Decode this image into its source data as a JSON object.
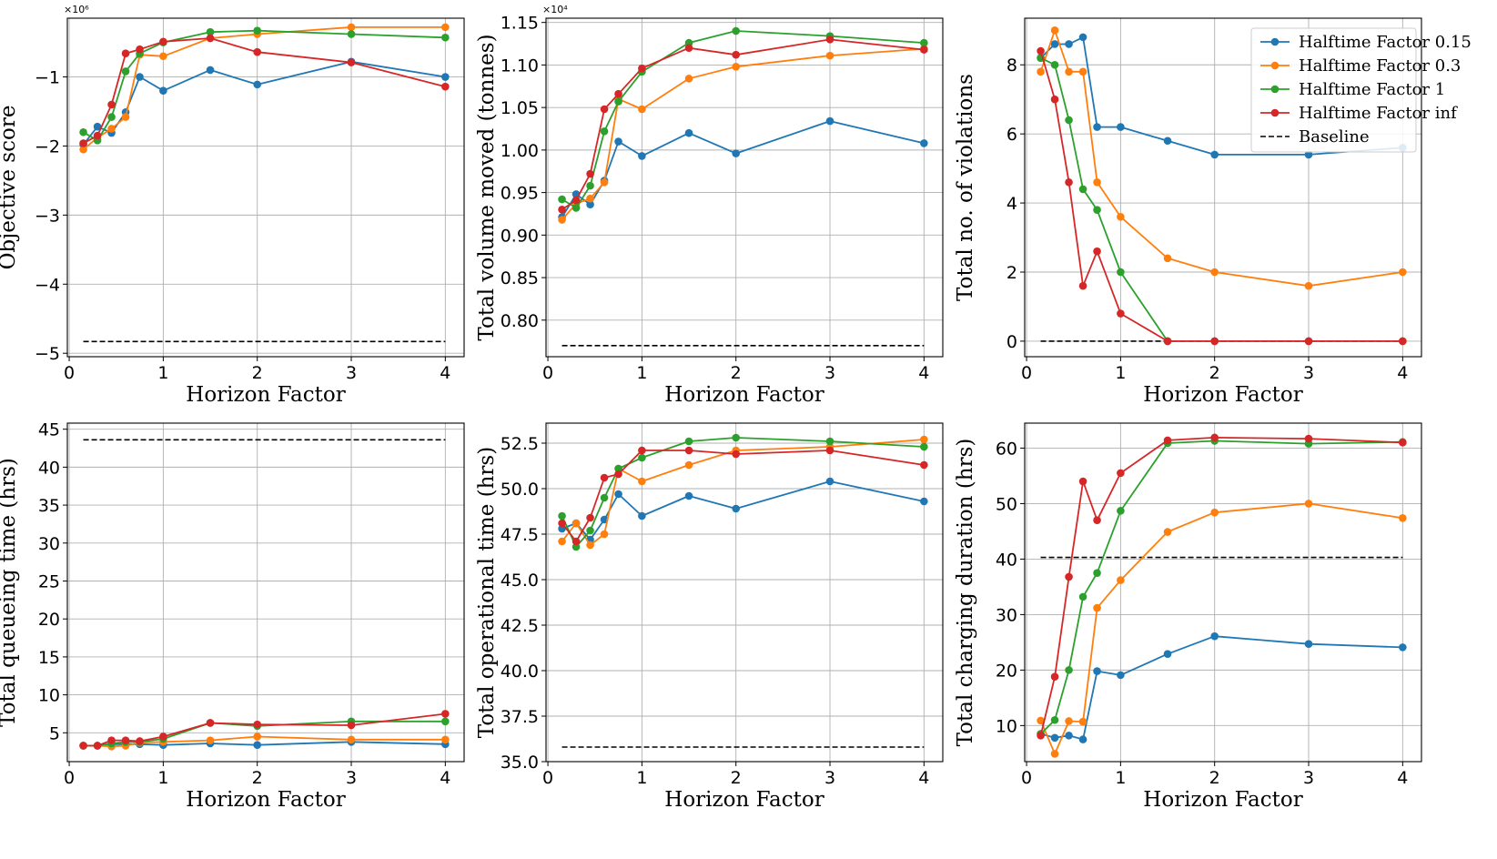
{
  "colors": {
    "s015": "#1f77b4",
    "s03": "#ff7f0e",
    "s1": "#2ca02c",
    "sinf": "#d62728",
    "baseline": "#000000",
    "grid": "#b0b0b0"
  },
  "legend": {
    "items": [
      {
        "label": "Halftime Factor 0.15",
        "color": "#1f77b4",
        "style": "marker"
      },
      {
        "label": "Halftime Factor 0.3",
        "color": "#ff7f0e",
        "style": "marker"
      },
      {
        "label": "Halftime Factor 1",
        "color": "#2ca02c",
        "style": "marker"
      },
      {
        "label": "Halftime Factor inf",
        "color": "#d62728",
        "style": "marker"
      },
      {
        "label": "Baseline",
        "color": "#000000",
        "style": "dashed"
      }
    ]
  },
  "chart_data": [
    {
      "type": "line",
      "xlabel": "Horizon Factor",
      "ylabel": "Objective score",
      "exponent": "×10⁶",
      "xlim": [
        -0.02,
        4.2
      ],
      "ylim": [
        -5.05,
        -0.15
      ],
      "xticks": [
        0,
        1,
        2,
        3,
        4
      ],
      "yticks": [
        -5,
        -4,
        -3,
        -2,
        -1
      ],
      "ytick_labels": [
        "−5",
        "−4",
        "−3",
        "−2",
        "−1"
      ],
      "x": [
        0.15,
        0.3,
        0.45,
        0.6,
        0.75,
        1,
        1.5,
        2,
        3,
        4
      ],
      "series": [
        {
          "name": "Halftime Factor 0.15",
          "values": [
            -1.98,
            -1.72,
            -1.81,
            -1.51,
            -1.0,
            -1.2,
            -0.9,
            -1.11,
            -0.78,
            -1.0
          ]
        },
        {
          "name": "Halftime Factor 0.3",
          "values": [
            -2.05,
            -1.88,
            -1.75,
            -1.58,
            -0.68,
            -0.7,
            -0.44,
            -0.38,
            -0.28,
            -0.28
          ]
        },
        {
          "name": "Halftime Factor 1",
          "values": [
            -1.8,
            -1.92,
            -1.58,
            -0.92,
            -0.66,
            -0.5,
            -0.35,
            -0.33,
            -0.38,
            -0.43
          ]
        },
        {
          "name": "Halftime Factor inf",
          "values": [
            -1.96,
            -1.85,
            -1.4,
            -0.66,
            -0.6,
            -0.49,
            -0.44,
            -0.64,
            -0.79,
            -1.14
          ]
        }
      ],
      "baseline": {
        "name": "Baseline",
        "value": -4.83,
        "x_range": [
          0.15,
          4
        ]
      }
    },
    {
      "type": "line",
      "xlabel": "Horizon Factor",
      "ylabel": "Total volume moved (tonnes)",
      "exponent": "×10⁴",
      "xlim": [
        -0.02,
        4.2
      ],
      "ylim": [
        0.757,
        1.155
      ],
      "xticks": [
        0,
        1,
        2,
        3,
        4
      ],
      "yticks": [
        0.8,
        0.85,
        0.9,
        0.95,
        1.0,
        1.05,
        1.1,
        1.15
      ],
      "ytick_labels": [
        "0.80",
        "0.85",
        "0.90",
        "0.95",
        "1.00",
        "1.05",
        "1.10",
        "1.15"
      ],
      "x": [
        0.15,
        0.3,
        0.45,
        0.6,
        0.75,
        1,
        1.5,
        2,
        3,
        4
      ],
      "series": [
        {
          "name": "Halftime Factor 0.15",
          "values": [
            0.921,
            0.948,
            0.936,
            0.964,
            1.01,
            0.993,
            1.02,
            0.996,
            1.034,
            1.008
          ]
        },
        {
          "name": "Halftime Factor 0.3",
          "values": [
            0.918,
            0.937,
            0.943,
            0.962,
            1.06,
            1.048,
            1.084,
            1.098,
            1.111,
            1.119
          ]
        },
        {
          "name": "Halftime Factor 1",
          "values": [
            0.942,
            0.932,
            0.958,
            1.022,
            1.057,
            1.092,
            1.126,
            1.14,
            1.134,
            1.126
          ]
        },
        {
          "name": "Halftime Factor inf",
          "values": [
            0.93,
            0.941,
            0.972,
            1.048,
            1.066,
            1.096,
            1.12,
            1.112,
            1.13,
            1.118
          ]
        }
      ],
      "baseline": {
        "name": "Baseline",
        "value": 0.77,
        "x_range": [
          0.15,
          4
        ]
      }
    },
    {
      "type": "line",
      "xlabel": "Horizon Factor",
      "ylabel": "Total no. of violations",
      "exponent": "",
      "xlim": [
        -0.02,
        4.2
      ],
      "ylim": [
        -0.45,
        9.35
      ],
      "xticks": [
        0,
        1,
        2,
        3,
        4
      ],
      "yticks": [
        0,
        2,
        4,
        6,
        8
      ],
      "ytick_labels": [
        "0",
        "2",
        "4",
        "6",
        "8"
      ],
      "x": [
        0.15,
        0.3,
        0.45,
        0.6,
        0.75,
        1,
        1.5,
        2,
        3,
        4
      ],
      "series": [
        {
          "name": "Halftime Factor 0.15",
          "values": [
            8.2,
            8.6,
            8.6,
            8.8,
            6.2,
            6.2,
            5.8,
            5.4,
            5.4,
            5.6
          ]
        },
        {
          "name": "Halftime Factor 0.3",
          "values": [
            7.8,
            9.0,
            7.8,
            7.8,
            4.6,
            3.6,
            2.4,
            2.0,
            1.6,
            2.0
          ]
        },
        {
          "name": "Halftime Factor 1",
          "values": [
            8.2,
            8.0,
            6.4,
            4.4,
            3.8,
            2.0,
            0.0,
            0.0,
            0.0,
            0.0
          ]
        },
        {
          "name": "Halftime Factor inf",
          "values": [
            8.4,
            7.0,
            4.6,
            1.6,
            2.6,
            0.8,
            0.0,
            0.0,
            0.0,
            0.0
          ]
        }
      ],
      "baseline": {
        "name": "Baseline",
        "value": 0.0,
        "x_range": [
          0.15,
          4
        ]
      },
      "legend": "top-right"
    },
    {
      "type": "line",
      "xlabel": "Horizon Factor",
      "ylabel": "Total queueing time (hrs)",
      "exponent": "",
      "xlim": [
        -0.02,
        4.2
      ],
      "ylim": [
        1.2,
        45.8
      ],
      "xticks": [
        0,
        1,
        2,
        3,
        4
      ],
      "yticks": [
        5,
        10,
        15,
        20,
        25,
        30,
        35,
        40,
        45
      ],
      "ytick_labels": [
        "5",
        "10",
        "15",
        "20",
        "25",
        "30",
        "35",
        "40",
        "45"
      ],
      "x": [
        0.15,
        0.3,
        0.45,
        0.6,
        0.75,
        1,
        1.5,
        2,
        3,
        4
      ],
      "series": [
        {
          "name": "Halftime Factor 0.15",
          "values": [
            3.3,
            3.3,
            3.5,
            3.5,
            3.5,
            3.4,
            3.6,
            3.4,
            3.8,
            3.5
          ]
        },
        {
          "name": "Halftime Factor 0.3",
          "values": [
            3.3,
            3.3,
            3.2,
            3.3,
            3.7,
            3.8,
            4.0,
            4.5,
            4.1,
            4.1
          ]
        },
        {
          "name": "Halftime Factor 1",
          "values": [
            3.3,
            3.3,
            3.6,
            3.8,
            3.8,
            4.2,
            6.3,
            5.9,
            6.5,
            6.5
          ]
        },
        {
          "name": "Halftime Factor inf",
          "values": [
            3.3,
            3.3,
            4.0,
            4.0,
            3.9,
            4.5,
            6.3,
            6.1,
            6.0,
            7.5
          ]
        }
      ],
      "baseline": {
        "name": "Baseline",
        "value": 43.6,
        "x_range": [
          0.15,
          4
        ]
      }
    },
    {
      "type": "line",
      "xlabel": "Horizon Factor",
      "ylabel": "Total operational time (hrs)",
      "exponent": "",
      "xlim": [
        -0.02,
        4.2
      ],
      "ylim": [
        35,
        53.6
      ],
      "xticks": [
        0,
        1,
        2,
        3,
        4
      ],
      "yticks": [
        35,
        37.5,
        40,
        42.5,
        45,
        47.5,
        50,
        52.5
      ],
      "ytick_labels": [
        "35.0",
        "37.5",
        "40.0",
        "42.5",
        "45.0",
        "47.5",
        "50.0",
        "52.5"
      ],
      "x": [
        0.15,
        0.3,
        0.45,
        0.6,
        0.75,
        1,
        1.5,
        2,
        3,
        4
      ],
      "series": [
        {
          "name": "Halftime Factor 0.15",
          "values": [
            47.8,
            48.1,
            47.2,
            48.3,
            49.7,
            48.5,
            49.6,
            48.9,
            50.4,
            49.3
          ]
        },
        {
          "name": "Halftime Factor 0.3",
          "values": [
            47.1,
            48.1,
            46.9,
            47.5,
            51.1,
            50.4,
            51.3,
            52.1,
            52.3,
            52.7
          ]
        },
        {
          "name": "Halftime Factor 1",
          "values": [
            48.5,
            46.8,
            47.7,
            49.5,
            51.1,
            51.7,
            52.6,
            52.8,
            52.6,
            52.3
          ]
        },
        {
          "name": "Halftime Factor inf",
          "values": [
            48.1,
            47.1,
            48.4,
            50.6,
            50.8,
            52.1,
            52.1,
            51.9,
            52.1,
            51.3
          ]
        }
      ],
      "baseline": {
        "name": "Baseline",
        "value": 35.8,
        "x_range": [
          0.15,
          4
        ]
      }
    },
    {
      "type": "line",
      "xlabel": "Horizon Factor",
      "ylabel": "Total charging duration (hrs)",
      "exponent": "",
      "xlim": [
        -0.02,
        4.2
      ],
      "ylim": [
        3.5,
        64.5
      ],
      "xticks": [
        0,
        1,
        2,
        3,
        4
      ],
      "yticks": [
        10,
        20,
        30,
        40,
        50,
        60
      ],
      "ytick_labels": [
        "10",
        "20",
        "30",
        "40",
        "50",
        "60"
      ],
      "x": [
        0.15,
        0.3,
        0.45,
        0.6,
        0.75,
        1,
        1.5,
        2,
        3,
        4
      ],
      "series": [
        {
          "name": "Halftime Factor 0.15",
          "values": [
            8.5,
            7.8,
            8.2,
            7.5,
            19.8,
            19.1,
            22.9,
            26.1,
            24.7,
            24.1
          ]
        },
        {
          "name": "Halftime Factor 0.3",
          "values": [
            10.9,
            4.9,
            10.8,
            10.7,
            31.2,
            36.2,
            44.9,
            48.4,
            50.0,
            47.4
          ]
        },
        {
          "name": "Halftime Factor 1",
          "values": [
            8.5,
            11.0,
            20.0,
            33.2,
            37.5,
            48.7,
            60.9,
            61.3,
            60.8,
            61.1
          ]
        },
        {
          "name": "Halftime Factor inf",
          "values": [
            8.2,
            18.8,
            36.8,
            54.0,
            47.0,
            55.5,
            61.4,
            61.9,
            61.7,
            61.0
          ]
        }
      ],
      "baseline": {
        "name": "Baseline",
        "value": 40.3,
        "x_range": [
          0.15,
          4
        ]
      }
    }
  ]
}
